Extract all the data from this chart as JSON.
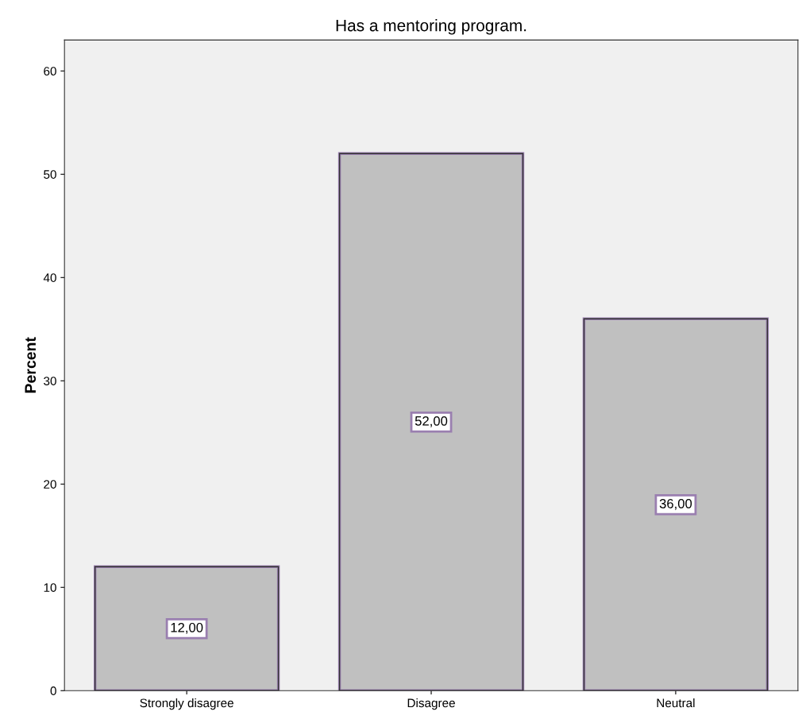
{
  "chart_data": {
    "type": "bar",
    "title": "Has a mentoring program.",
    "ylabel": "Percent",
    "categories": [
      "Strongly disagree",
      "Disagree",
      "Neutral"
    ],
    "values": [
      12,
      52,
      36
    ],
    "color": "#c0c0c0",
    "value_labels": [
      "12,00",
      "52,00",
      "36,00"
    ],
    "ylim": [
      0,
      63
    ],
    "yticks": [
      0,
      10,
      20,
      30,
      40,
      50,
      60
    ],
    "grid": false
  }
}
